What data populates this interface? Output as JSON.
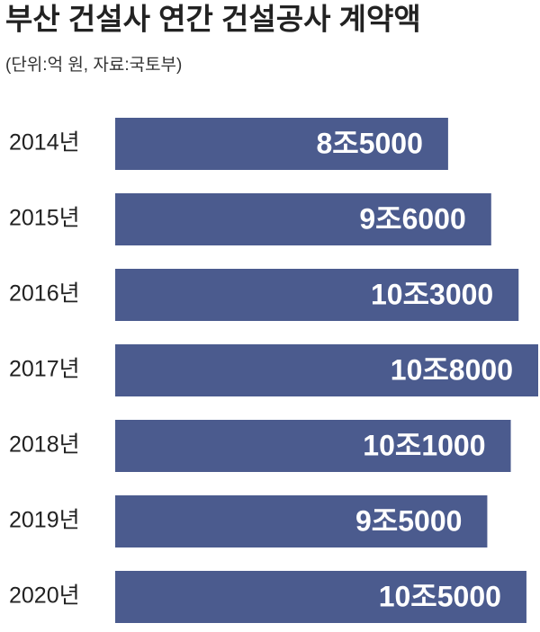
{
  "chart_data": {
    "type": "hbar",
    "title": "부산 건설사 연간 건설공사 계약액",
    "subtitle": "(단위:억 원, 자료:국토부)",
    "categories": [
      "2014년",
      "2015년",
      "2016년",
      "2017년",
      "2018년",
      "2019년",
      "2020년"
    ],
    "values": [
      85000,
      96000,
      103000,
      108000,
      101000,
      95000,
      105000
    ],
    "value_labels": [
      "8조5000",
      "9조6000",
      "10조3000",
      "10조8000",
      "10조1000",
      "9조5000",
      "10조5000"
    ],
    "color": "#4b5b8e"
  }
}
